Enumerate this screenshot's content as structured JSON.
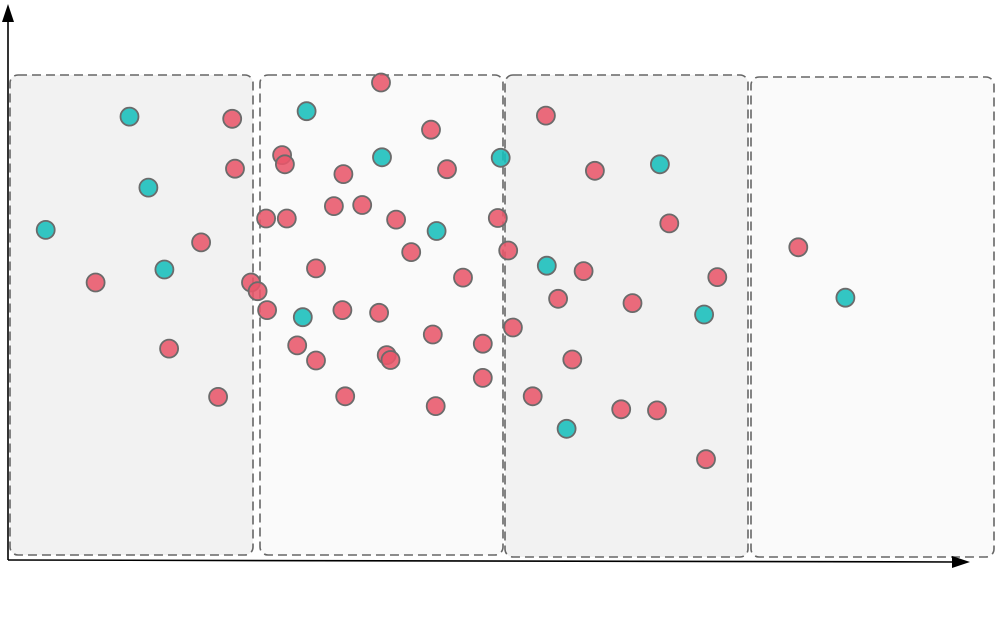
{
  "colors": {
    "background": "#ffffff",
    "panel_shaded": "#f2f2f2",
    "panel_light": "#fafafa",
    "panel_border": "#666666",
    "axis": "#000000",
    "point_red": "#e8566a",
    "point_teal": "#17bebb",
    "point_stroke": "#6b6b6b"
  },
  "panels": [
    {
      "id": "bin-1",
      "shading": "shaded"
    },
    {
      "id": "bin-2",
      "shading": "light"
    },
    {
      "id": "bin-3",
      "shading": "shaded"
    },
    {
      "id": "bin-4",
      "shading": "light"
    }
  ],
  "chart_data": {
    "type": "scatter",
    "title": "",
    "xlabel": "",
    "ylabel": "",
    "xlim": [
      0,
      100
    ],
    "ylim": [
      0,
      100
    ],
    "grid": false,
    "series": [
      {
        "class": "red",
        "color": "#e8566a",
        "points": [
          [
            9.3,
            51.2
          ],
          [
            17.1,
            39.0
          ],
          [
            20.5,
            58.6
          ],
          [
            22.3,
            30.1
          ],
          [
            23.8,
            81.4
          ],
          [
            24.1,
            72.2
          ],
          [
            25.8,
            51.2
          ],
          [
            26.5,
            49.6
          ],
          [
            27.5,
            46.1
          ],
          [
            27.4,
            63.0
          ],
          [
            29.1,
            74.7
          ],
          [
            29.4,
            73.0
          ],
          [
            29.6,
            63.0
          ],
          [
            30.7,
            39.6
          ],
          [
            32.7,
            53.8
          ],
          [
            32.7,
            36.8
          ],
          [
            34.6,
            65.3
          ],
          [
            35.6,
            71.2
          ],
          [
            35.8,
            30.2
          ],
          [
            35.5,
            46.1
          ],
          [
            37.6,
            65.5
          ],
          [
            39.6,
            88.1
          ],
          [
            39.4,
            45.6
          ],
          [
            40.2,
            37.8
          ],
          [
            40.6,
            36.9
          ],
          [
            41.2,
            62.8
          ],
          [
            42.8,
            56.8
          ],
          [
            44.9,
            79.4
          ],
          [
            45.1,
            41.6
          ],
          [
            45.4,
            28.4
          ],
          [
            46.6,
            72.1
          ],
          [
            48.3,
            52.1
          ],
          [
            50.4,
            39.9
          ],
          [
            50.4,
            33.6
          ],
          [
            52.0,
            63.1
          ],
          [
            53.1,
            57.1
          ],
          [
            53.6,
            42.9
          ],
          [
            55.7,
            30.2
          ],
          [
            57.1,
            82.0
          ],
          [
            58.4,
            48.2
          ],
          [
            59.9,
            37.0
          ],
          [
            61.1,
            53.3
          ],
          [
            62.3,
            71.8
          ],
          [
            65.1,
            27.8
          ],
          [
            66.3,
            47.4
          ],
          [
            68.9,
            27.6
          ],
          [
            70.2,
            62.1
          ],
          [
            74.1,
            18.6
          ],
          [
            75.3,
            52.2
          ],
          [
            83.9,
            57.7
          ]
        ]
      },
      {
        "class": "teal",
        "color": "#17bebb",
        "points": [
          [
            4.0,
            60.9
          ],
          [
            12.9,
            81.8
          ],
          [
            14.9,
            68.7
          ],
          [
            16.6,
            53.6
          ],
          [
            31.7,
            82.8
          ],
          [
            31.3,
            44.8
          ],
          [
            39.7,
            74.3
          ],
          [
            45.5,
            60.7
          ],
          [
            52.3,
            74.2
          ],
          [
            57.2,
            54.3
          ],
          [
            59.3,
            24.2
          ],
          [
            69.2,
            73.0
          ],
          [
            73.9,
            45.3
          ],
          [
            88.9,
            48.4
          ]
        ]
      }
    ]
  }
}
